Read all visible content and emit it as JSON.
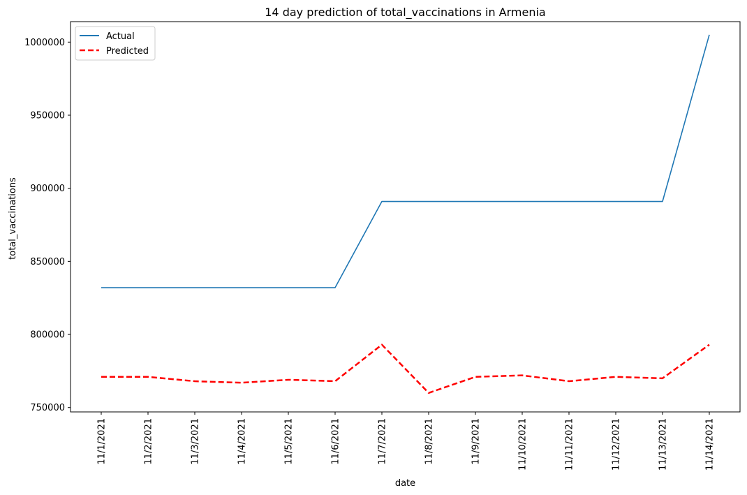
{
  "chart_data": {
    "type": "line",
    "title": "14 day prediction of total_vaccinations in Armenia",
    "xlabel": "date",
    "ylabel": "total_vaccinations",
    "categories": [
      "11/1/2021",
      "11/2/2021",
      "11/3/2021",
      "11/4/2021",
      "11/5/2021",
      "11/6/2021",
      "11/7/2021",
      "11/8/2021",
      "11/9/2021",
      "11/10/2021",
      "11/11/2021",
      "11/12/2021",
      "11/13/2021",
      "11/14/2021"
    ],
    "series": [
      {
        "name": "Actual",
        "color": "#1f77b4",
        "style": "solid",
        "values": [
          832000,
          832000,
          832000,
          832000,
          832000,
          832000,
          891000,
          891000,
          891000,
          891000,
          891000,
          891000,
          891000,
          1005000
        ]
      },
      {
        "name": "Predicted",
        "color": "#ff0000",
        "style": "dashed",
        "values": [
          771000,
          771000,
          768000,
          767000,
          769000,
          768000,
          793000,
          760000,
          771000,
          772000,
          768000,
          771000,
          770000,
          793000
        ]
      }
    ],
    "yticks": [
      "750000",
      "800000",
      "850000",
      "900000",
      "950000",
      "1000000"
    ],
    "ylim": [
      747000,
      1014000
    ],
    "grid": false,
    "legend_position": "upper-left"
  }
}
